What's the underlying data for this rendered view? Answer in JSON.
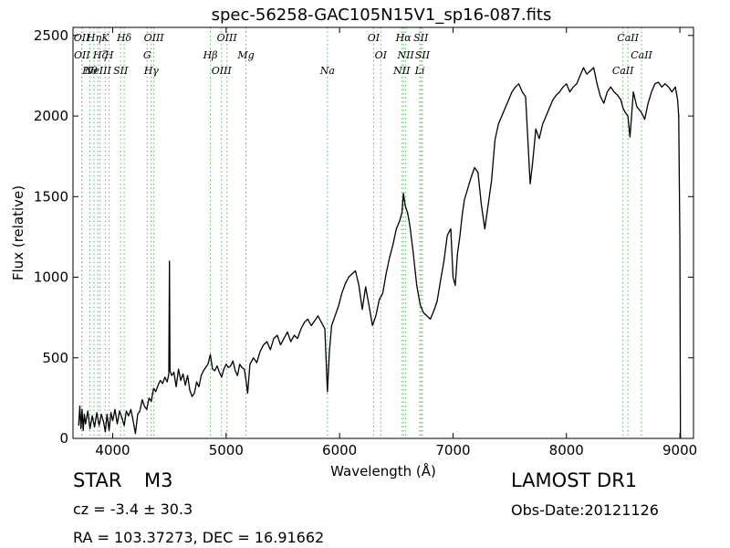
{
  "chart_data": {
    "type": "line",
    "title": "spec-56258-GAC105N15V1_sp16-087.fits",
    "xlabel": "Wavelength (Å)",
    "ylabel": "Flux (relative)",
    "xlim": [
      3650,
      9120
    ],
    "ylim": [
      0,
      2550
    ],
    "x_ticks": [
      4000,
      5000,
      6000,
      7000,
      8000,
      9000
    ],
    "y_ticks": [
      0,
      500,
      1000,
      1500,
      2000,
      2500
    ],
    "grid": false,
    "line_color": "#000000",
    "marker_line_color": "#5cb85c",
    "series": [
      {
        "x": [
          3700,
          3710,
          3720,
          3730,
          3740,
          3750,
          3760,
          3780,
          3800,
          3820,
          3840,
          3860,
          3880,
          3900,
          3920,
          3935,
          3950,
          3968,
          3985,
          4000,
          4020,
          4040,
          4060,
          4080,
          4101,
          4120,
          4140,
          4160,
          4180,
          4200,
          4220,
          4240,
          4260,
          4280,
          4300,
          4320,
          4340,
          4360,
          4380,
          4400,
          4420,
          4440,
          4460,
          4480,
          4495,
          4500,
          4505,
          4520,
          4540,
          4560,
          4580,
          4600,
          4620,
          4640,
          4660,
          4680,
          4700,
          4720,
          4740,
          4760,
          4780,
          4800,
          4820,
          4840,
          4861,
          4880,
          4900,
          4920,
          4940,
          4960,
          4980,
          5000,
          5020,
          5040,
          5060,
          5080,
          5100,
          5120,
          5140,
          5160,
          5175,
          5190,
          5210,
          5240,
          5270,
          5300,
          5330,
          5360,
          5390,
          5420,
          5450,
          5480,
          5510,
          5540,
          5570,
          5600,
          5630,
          5660,
          5690,
          5720,
          5750,
          5780,
          5810,
          5840,
          5870,
          5893,
          5910,
          5930,
          5960,
          5990,
          6020,
          6050,
          6080,
          6110,
          6140,
          6170,
          6200,
          6230,
          6260,
          6290,
          6320,
          6350,
          6380,
          6410,
          6440,
          6470,
          6500,
          6530,
          6550,
          6563,
          6580,
          6600,
          6620,
          6650,
          6680,
          6710,
          6740,
          6770,
          6800,
          6830,
          6860,
          6890,
          6920,
          6950,
          6980,
          7000,
          7020,
          7040,
          7060,
          7080,
          7100,
          7130,
          7160,
          7190,
          7220,
          7250,
          7280,
          7310,
          7340,
          7370,
          7400,
          7430,
          7460,
          7490,
          7520,
          7550,
          7580,
          7610,
          7640,
          7660,
          7680,
          7700,
          7730,
          7760,
          7790,
          7820,
          7850,
          7880,
          7910,
          7940,
          7970,
          8000,
          8030,
          8060,
          8090,
          8120,
          8150,
          8180,
          8210,
          8240,
          8270,
          8300,
          8330,
          8360,
          8390,
          8420,
          8450,
          8480,
          8498,
          8520,
          8542,
          8560,
          8590,
          8620,
          8662,
          8690,
          8720,
          8750,
          8780,
          8810,
          8840,
          8870,
          8900,
          8930,
          8960,
          8980,
          8990,
          9000,
          9005
        ],
        "values": [
          80,
          200,
          60,
          180,
          50,
          150,
          90,
          170,
          60,
          140,
          70,
          160,
          80,
          150,
          100,
          40,
          150,
          50,
          160,
          110,
          180,
          90,
          170,
          130,
          80,
          170,
          140,
          180,
          110,
          30,
          150,
          170,
          240,
          200,
          180,
          250,
          230,
          310,
          290,
          330,
          360,
          340,
          380,
          350,
          400,
          1100,
          420,
          390,
          410,
          320,
          430,
          360,
          400,
          330,
          390,
          300,
          260,
          280,
          350,
          320,
          390,
          420,
          440,
          460,
          520,
          430,
          420,
          450,
          410,
          380,
          430,
          460,
          440,
          450,
          480,
          420,
          390,
          460,
          440,
          430,
          360,
          280,
          460,
          500,
          470,
          540,
          580,
          600,
          550,
          620,
          640,
          580,
          620,
          660,
          600,
          640,
          620,
          680,
          720,
          740,
          700,
          730,
          760,
          720,
          680,
          290,
          540,
          700,
          760,
          820,
          900,
          960,
          1000,
          1020,
          1040,
          950,
          800,
          940,
          820,
          700,
          760,
          860,
          900,
          1020,
          1120,
          1200,
          1300,
          1350,
          1400,
          1520,
          1440,
          1400,
          1320,
          1150,
          950,
          830,
          780,
          760,
          740,
          790,
          850,
          980,
          1100,
          1260,
          1300,
          1000,
          950,
          1150,
          1250,
          1380,
          1480,
          1550,
          1620,
          1680,
          1650,
          1450,
          1300,
          1450,
          1600,
          1850,
          1950,
          2000,
          2050,
          2100,
          2150,
          2180,
          2200,
          2150,
          2120,
          1850,
          1580,
          1700,
          1920,
          1860,
          1950,
          2000,
          2050,
          2100,
          2130,
          2150,
          2180,
          2200,
          2150,
          2180,
          2200,
          2250,
          2300,
          2260,
          2280,
          2300,
          2200,
          2120,
          2080,
          2150,
          2180,
          2150,
          2130,
          2100,
          2050,
          2020,
          2000,
          1870,
          2150,
          2060,
          2020,
          1980,
          2080,
          2150,
          2200,
          2210,
          2180,
          2200,
          2180,
          2150,
          2180,
          2100,
          2000,
          1200,
          0
        ]
      }
    ],
    "lines": [
      {
        "label": "OII",
        "x": 3727
      },
      {
        "label": "OII",
        "x": 3729
      },
      {
        "label": "Hθ",
        "x": 3798
      },
      {
        "label": "Hη",
        "x": 3835
      },
      {
        "label": "Hζ",
        "x": 3889
      },
      {
        "label": "NeIII",
        "x": 3869
      },
      {
        "label": "K",
        "x": 3934
      },
      {
        "label": "H",
        "x": 3969
      },
      {
        "label": "SII",
        "x": 4070
      },
      {
        "label": "Hδ",
        "x": 4101
      },
      {
        "label": "G",
        "x": 4304
      },
      {
        "label": "Hγ",
        "x": 4340
      },
      {
        "label": "OIII",
        "x": 4363
      },
      {
        "label": "Hβ",
        "x": 4861
      },
      {
        "label": "OIII",
        "x": 4959
      },
      {
        "label": "OIII",
        "x": 5007
      },
      {
        "label": "Mg",
        "x": 5175
      },
      {
        "label": "Na",
        "x": 5893
      },
      {
        "label": "OI",
        "x": 6300
      },
      {
        "label": "OI",
        "x": 6363
      },
      {
        "label": "NII",
        "x": 6548
      },
      {
        "label": "Hα",
        "x": 6563
      },
      {
        "label": "NII",
        "x": 6583
      },
      {
        "label": "Li",
        "x": 6707
      },
      {
        "label": "SII",
        "x": 6717
      },
      {
        "label": "SII",
        "x": 6731
      },
      {
        "label": "CaII",
        "x": 8498
      },
      {
        "label": "CaII",
        "x": 8542
      },
      {
        "label": "CaII",
        "x": 8662
      }
    ]
  },
  "info": {
    "object_type": "STAR",
    "subclass": "M3",
    "redshift": "cz = -3.4  ± 30.3",
    "coords": "RA = 103.37273, DEC = 16.91662",
    "survey": "LAMOST DR1",
    "obs_date": "Obs-Date:20121126"
  }
}
